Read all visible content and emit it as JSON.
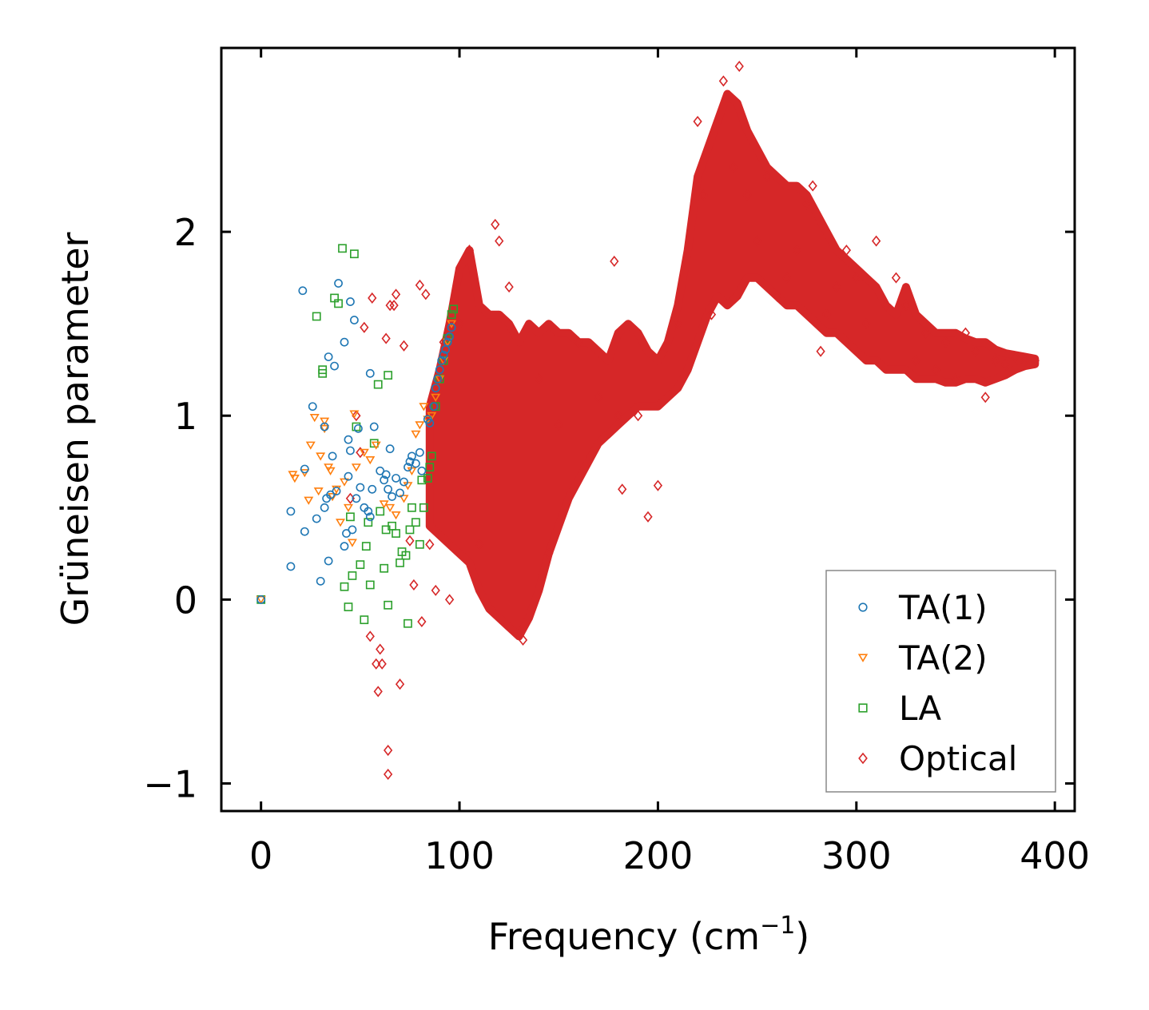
{
  "chart_data": {
    "type": "scatter",
    "xlabel": "Frequency (cm",
    "xlabel_sup": "−1",
    "xlabel_close": ")",
    "ylabel": "Grüneisen parameter",
    "xlim": [
      -20,
      410
    ],
    "ylim": [
      -1.15,
      3.0
    ],
    "xticks": [
      0,
      100,
      200,
      300,
      400
    ],
    "xtick_labels": [
      "0",
      "100",
      "200",
      "300",
      "400"
    ],
    "yticks": [
      -1,
      0,
      1,
      2
    ],
    "ytick_labels": [
      "−1",
      "0",
      "1",
      "2"
    ],
    "legend_position": "bottom-right",
    "series": [
      {
        "name": "TA(1)",
        "marker": "circle",
        "color": "#1f77b4",
        "points": [
          [
            0,
            0
          ],
          [
            15,
            0.48
          ],
          [
            15,
            0.18
          ],
          [
            21,
            1.68
          ],
          [
            22,
            0.37
          ],
          [
            22,
            0.71
          ],
          [
            26,
            1.05
          ],
          [
            28,
            0.44
          ],
          [
            30,
            0.1
          ],
          [
            32,
            0.94
          ],
          [
            32,
            0.5
          ],
          [
            33,
            0.55
          ],
          [
            34,
            1.32
          ],
          [
            34,
            0.21
          ],
          [
            35,
            0.57
          ],
          [
            36,
            0.78
          ],
          [
            37,
            1.27
          ],
          [
            38,
            0.59
          ],
          [
            39,
            1.72
          ],
          [
            42,
            1.4
          ],
          [
            42,
            0.29
          ],
          [
            43,
            0.36
          ],
          [
            44,
            0.87
          ],
          [
            44,
            0.67
          ],
          [
            45,
            1.62
          ],
          [
            45,
            0.81
          ],
          [
            46,
            0.38
          ],
          [
            47,
            1.52
          ],
          [
            48,
            0.55
          ],
          [
            49,
            0.93
          ],
          [
            50,
            0.61
          ],
          [
            52,
            0.5
          ],
          [
            54,
            0.48
          ],
          [
            55,
            0.45
          ],
          [
            55,
            1.23
          ],
          [
            56,
            0.6
          ],
          [
            57,
            0.94
          ],
          [
            60,
            0.7
          ],
          [
            62,
            0.65
          ],
          [
            63,
            0.68
          ],
          [
            64,
            0.6
          ],
          [
            65,
            0.82
          ],
          [
            66,
            0.56
          ],
          [
            68,
            0.66
          ],
          [
            70,
            0.58
          ],
          [
            72,
            0.64
          ],
          [
            74,
            0.72
          ],
          [
            75,
            0.75
          ],
          [
            76,
            0.78
          ],
          [
            78,
            0.74
          ],
          [
            80,
            0.8
          ],
          [
            81,
            0.7
          ],
          [
            84,
            0.98
          ],
          [
            85,
            0.96
          ],
          [
            87,
            1.05
          ],
          [
            88,
            1.15
          ],
          [
            89,
            1.2
          ],
          [
            90,
            1.25
          ],
          [
            91,
            1.3
          ],
          [
            92,
            1.33
          ],
          [
            93,
            1.36
          ],
          [
            94,
            1.4
          ],
          [
            95,
            1.43
          ],
          [
            96,
            1.48
          ]
        ]
      },
      {
        "name": "TA(2)",
        "marker": "triangle",
        "color": "#ff7f0e",
        "points": [
          [
            0,
            0
          ],
          [
            16,
            0.68
          ],
          [
            17,
            0.66
          ],
          [
            22,
            0.69
          ],
          [
            24,
            0.54
          ],
          [
            25,
            0.84
          ],
          [
            27,
            0.99
          ],
          [
            29,
            0.59
          ],
          [
            30,
            0.78
          ],
          [
            32,
            0.93
          ],
          [
            32,
            0.97
          ],
          [
            34,
            0.72
          ],
          [
            35,
            0.7
          ],
          [
            36,
            0.56
          ],
          [
            38,
            0.6
          ],
          [
            40,
            0.42
          ],
          [
            42,
            0.64
          ],
          [
            44,
            0.5
          ],
          [
            46,
            0.31
          ],
          [
            47,
            1.01
          ],
          [
            48,
            0.72
          ],
          [
            52,
            0.8
          ],
          [
            55,
            0.76
          ],
          [
            58,
            0.84
          ],
          [
            62,
            0.52
          ],
          [
            65,
            0.5
          ],
          [
            68,
            0.46
          ],
          [
            72,
            0.55
          ],
          [
            74,
            0.62
          ],
          [
            76,
            0.7
          ],
          [
            78,
            0.9
          ],
          [
            80,
            0.95
          ],
          [
            82,
            1.05
          ],
          [
            84,
            0.98
          ],
          [
            86,
            1.0
          ],
          [
            88,
            1.1
          ],
          [
            90,
            1.2
          ],
          [
            92,
            1.3
          ],
          [
            94,
            1.4
          ],
          [
            96,
            1.5
          ]
        ]
      },
      {
        "name": "LA",
        "marker": "square",
        "color": "#2ca02c",
        "points": [
          [
            0,
            0
          ],
          [
            28,
            1.54
          ],
          [
            31,
            1.23
          ],
          [
            31,
            1.25
          ],
          [
            37,
            1.64
          ],
          [
            39,
            1.61
          ],
          [
            41,
            1.91
          ],
          [
            42,
            0.07
          ],
          [
            44,
            -0.04
          ],
          [
            45,
            0.45
          ],
          [
            46,
            0.13
          ],
          [
            47,
            1.88
          ],
          [
            48,
            0.94
          ],
          [
            50,
            0.19
          ],
          [
            52,
            -0.11
          ],
          [
            53,
            0.29
          ],
          [
            54,
            0.42
          ],
          [
            55,
            0.08
          ],
          [
            57,
            0.85
          ],
          [
            59,
            1.17
          ],
          [
            60,
            0.48
          ],
          [
            62,
            0.17
          ],
          [
            63,
            0.38
          ],
          [
            64,
            -0.03
          ],
          [
            64,
            1.22
          ],
          [
            66,
            0.4
          ],
          [
            68,
            0.36
          ],
          [
            70,
            0.2
          ],
          [
            71,
            0.26
          ],
          [
            73,
            0.24
          ],
          [
            74,
            -0.13
          ],
          [
            75,
            0.38
          ],
          [
            76,
            0.5
          ],
          [
            78,
            0.42
          ],
          [
            80,
            0.3
          ],
          [
            81,
            0.65
          ],
          [
            82,
            0.5
          ],
          [
            84,
            0.66
          ],
          [
            85,
            0.72
          ],
          [
            86,
            0.78
          ],
          [
            88,
            1.05
          ],
          [
            90,
            1.2
          ],
          [
            92,
            1.3
          ],
          [
            94,
            1.42
          ],
          [
            96,
            1.55
          ],
          [
            97,
            1.58
          ]
        ]
      },
      {
        "name": "Optical",
        "marker": "diamond",
        "color": "#d62728",
        "points": [
          [
            45,
            0.55
          ],
          [
            48,
            1.0
          ],
          [
            50,
            0.8
          ],
          [
            52,
            1.48
          ],
          [
            55,
            -0.2
          ],
          [
            56,
            1.64
          ],
          [
            58,
            -0.35
          ],
          [
            59,
            -0.5
          ],
          [
            60,
            -0.27
          ],
          [
            61,
            -0.35
          ],
          [
            63,
            1.42
          ],
          [
            64,
            -0.82
          ],
          [
            64,
            -0.95
          ],
          [
            65,
            1.6
          ],
          [
            67,
            1.6
          ],
          [
            68,
            1.66
          ],
          [
            70,
            -0.46
          ],
          [
            72,
            1.38
          ],
          [
            75,
            0.32
          ],
          [
            77,
            0.08
          ],
          [
            80,
            1.71
          ],
          [
            81,
            -0.12
          ],
          [
            83,
            1.66
          ],
          [
            85,
            0.3
          ],
          [
            88,
            0.05
          ],
          [
            92,
            1.4
          ],
          [
            95,
            0.0
          ],
          [
            100,
            1.5
          ],
          [
            105,
            1.9
          ],
          [
            110,
            0.3
          ],
          [
            118,
            2.04
          ],
          [
            120,
            1.95
          ],
          [
            125,
            1.7
          ],
          [
            132,
            -0.22
          ],
          [
            140,
            1.2
          ],
          [
            145,
            0.25
          ],
          [
            150,
            0.95
          ],
          [
            160,
            1.4
          ],
          [
            170,
            1.1
          ],
          [
            178,
            1.84
          ],
          [
            180,
            1.0
          ],
          [
            182,
            0.6
          ],
          [
            190,
            1.0
          ],
          [
            195,
            0.45
          ],
          [
            200,
            0.62
          ],
          [
            210,
            1.5
          ],
          [
            220,
            2.6
          ],
          [
            223,
            2.2
          ],
          [
            227,
            1.55
          ],
          [
            233,
            2.82
          ],
          [
            238,
            2.35
          ],
          [
            241,
            2.9
          ],
          [
            245,
            2.2
          ],
          [
            250,
            1.95
          ],
          [
            255,
            2.3
          ],
          [
            260,
            1.65
          ],
          [
            265,
            1.75
          ],
          [
            270,
            1.9
          ],
          [
            275,
            2.15
          ],
          [
            278,
            2.25
          ],
          [
            282,
            1.35
          ],
          [
            285,
            1.55
          ],
          [
            290,
            1.7
          ],
          [
            295,
            1.9
          ],
          [
            300,
            1.75
          ],
          [
            305,
            1.5
          ],
          [
            310,
            1.95
          ],
          [
            315,
            1.6
          ],
          [
            320,
            1.75
          ],
          [
            325,
            1.6
          ],
          [
            330,
            1.3
          ],
          [
            335,
            1.45
          ],
          [
            340,
            1.25
          ],
          [
            345,
            1.4
          ],
          [
            350,
            1.2
          ],
          [
            355,
            1.45
          ],
          [
            360,
            1.35
          ],
          [
            365,
            1.1
          ],
          [
            370,
            1.3
          ],
          [
            375,
            1.28
          ],
          [
            380,
            1.32
          ],
          [
            385,
            1.3
          ],
          [
            390,
            1.3
          ]
        ],
        "density_band": {
          "x": [
            85,
            90,
            95,
            100,
            105,
            110,
            115,
            120,
            125,
            130,
            135,
            140,
            145,
            150,
            155,
            160,
            165,
            170,
            175,
            180,
            185,
            190,
            195,
            200,
            205,
            210,
            215,
            220,
            225,
            230,
            235,
            240,
            245,
            250,
            255,
            260,
            265,
            270,
            275,
            280,
            285,
            290,
            295,
            300,
            305,
            310,
            315,
            320,
            325,
            330,
            335,
            340,
            345,
            350,
            355,
            360,
            365,
            370,
            375,
            380,
            385,
            390
          ],
          "upper": [
            1.05,
            1.25,
            1.5,
            1.8,
            1.9,
            1.6,
            1.55,
            1.55,
            1.5,
            1.4,
            1.5,
            1.45,
            1.5,
            1.45,
            1.45,
            1.4,
            1.4,
            1.35,
            1.3,
            1.45,
            1.5,
            1.45,
            1.35,
            1.3,
            1.4,
            1.6,
            1.9,
            2.3,
            2.45,
            2.6,
            2.75,
            2.7,
            2.55,
            2.45,
            2.35,
            2.3,
            2.25,
            2.25,
            2.2,
            2.1,
            2.0,
            1.9,
            1.85,
            1.8,
            1.75,
            1.7,
            1.6,
            1.55,
            1.7,
            1.55,
            1.5,
            1.45,
            1.45,
            1.45,
            1.42,
            1.4,
            1.4,
            1.36,
            1.34,
            1.33,
            1.32,
            1.31
          ],
          "lower": [
            0.4,
            0.35,
            0.3,
            0.25,
            0.2,
            0.05,
            -0.05,
            -0.1,
            -0.15,
            -0.2,
            -0.1,
            0.05,
            0.25,
            0.4,
            0.55,
            0.65,
            0.75,
            0.85,
            0.9,
            0.95,
            1.0,
            1.05,
            1.05,
            1.05,
            1.1,
            1.15,
            1.25,
            1.4,
            1.55,
            1.65,
            1.6,
            1.65,
            1.75,
            1.75,
            1.7,
            1.65,
            1.6,
            1.6,
            1.55,
            1.5,
            1.45,
            1.45,
            1.4,
            1.35,
            1.3,
            1.3,
            1.25,
            1.25,
            1.25,
            1.2,
            1.2,
            1.2,
            1.18,
            1.18,
            1.2,
            1.2,
            1.18,
            1.2,
            1.22,
            1.25,
            1.27,
            1.28
          ]
        }
      }
    ]
  }
}
